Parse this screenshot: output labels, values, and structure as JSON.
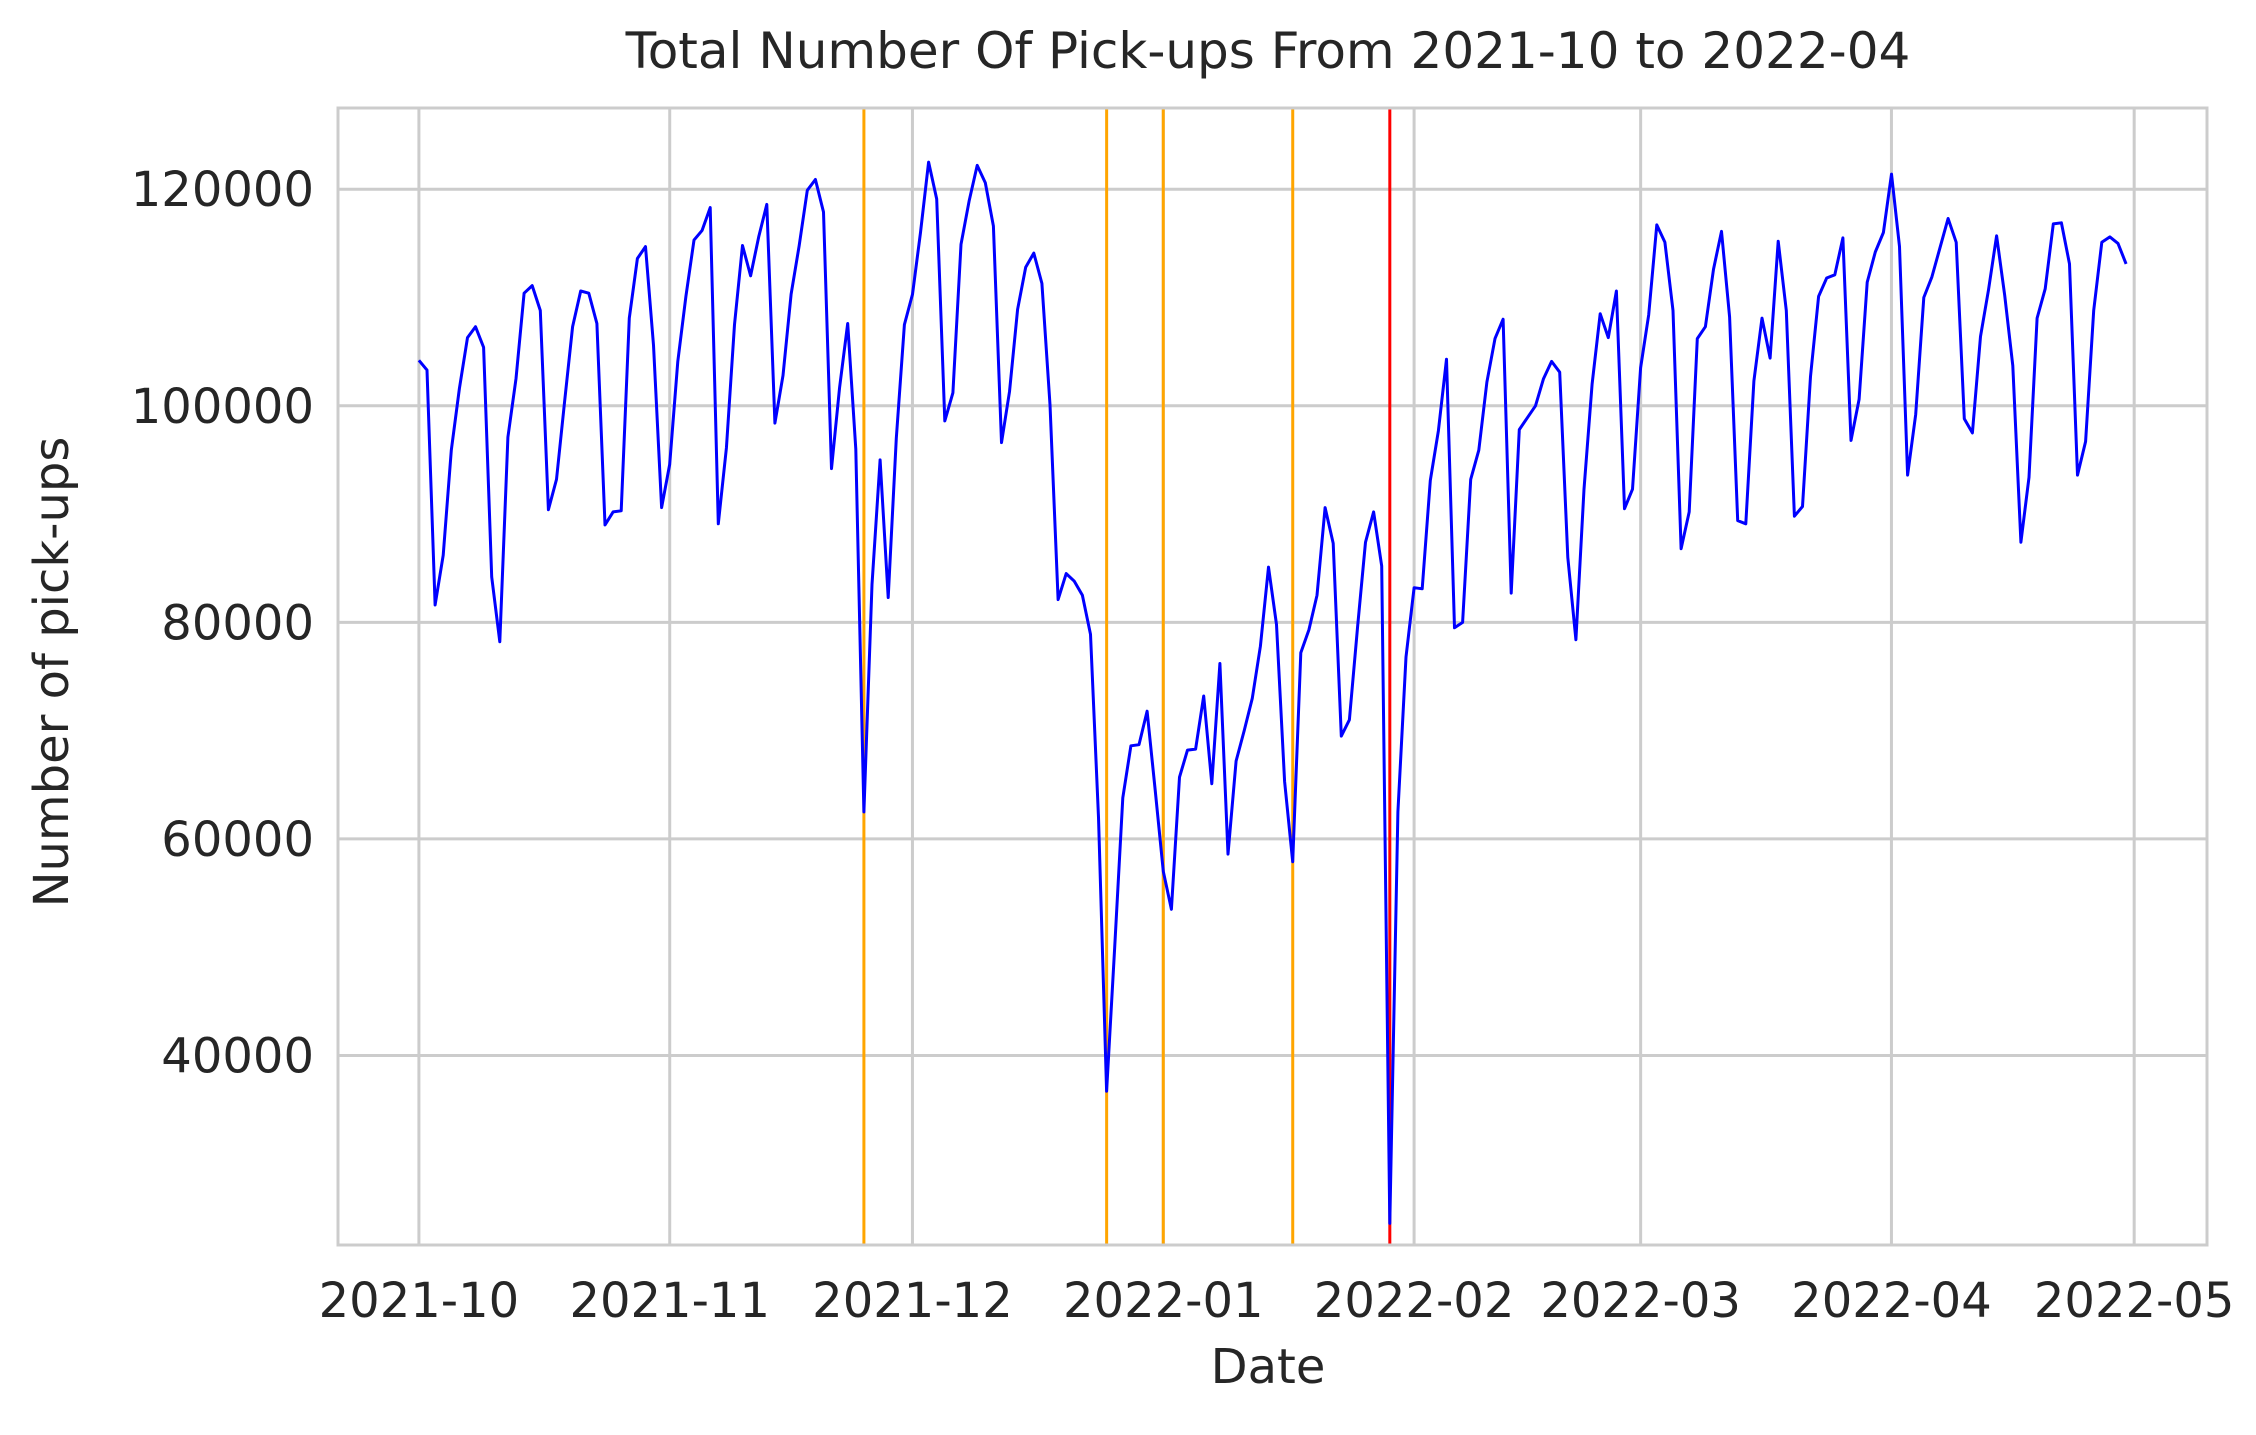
{
  "chart_data": {
    "type": "line",
    "title": "Total Number Of Pick-ups From 2021-10 to 2022-04",
    "xlabel": "Date",
    "ylabel": "Number of pick-ups",
    "xlim": [
      "2021-09-21",
      "2022-05-10"
    ],
    "ylim": [
      22500,
      127500
    ],
    "x_ticks": [
      "2021-10-01",
      "2021-11-01",
      "2021-12-01",
      "2022-01-01",
      "2022-02-01",
      "2022-03-01",
      "2022-04-01",
      "2022-05-01"
    ],
    "x_tick_labels": [
      "2021-10",
      "2021-11",
      "2021-12",
      "2022-01",
      "2022-02",
      "2022-03",
      "2022-04",
      "2022-05"
    ],
    "y_ticks": [
      40000,
      60000,
      80000,
      100000,
      120000
    ],
    "y_tick_labels": [
      "40000",
      "60000",
      "80000",
      "100000",
      "120000"
    ],
    "grid": true,
    "colors": {
      "line": "#0000ff",
      "event_line": "#ffa500",
      "highlight_line": "#ff0000",
      "grid": "#cccccc",
      "spine": "#cccccc",
      "text": "#262626"
    },
    "series": [
      {
        "start_date": "2021-10-01",
        "values": [
          104200,
          103300,
          81600,
          86200,
          95900,
          101600,
          106300,
          107300,
          105400,
          84200,
          78200,
          97100,
          102500,
          110400,
          111100,
          108800,
          90400,
          93200,
          100300,
          107300,
          110600,
          110400,
          107600,
          89000,
          90200,
          90300,
          108100,
          113600,
          114700,
          105600,
          90600,
          94600,
          104100,
          110100,
          115300,
          116200,
          118300,
          89100,
          96100,
          107500,
          114800,
          112000,
          115600,
          118600,
          98400,
          102800,
          110300,
          114800,
          119900,
          120900,
          117900,
          94200,
          101700,
          107600,
          96000,
          62500,
          83500,
          95000,
          82300,
          97000,
          107500,
          110300,
          116000,
          122500,
          119100,
          98600,
          101200,
          114900,
          118900,
          122200,
          120600,
          116600,
          96600,
          101300,
          108900,
          112800,
          114100,
          111300,
          100100,
          82100,
          84500,
          83800,
          82500,
          78900,
          62000,
          36700,
          50000,
          63800,
          68600,
          68700,
          71800,
          64500,
          57000,
          53500,
          65700,
          68200,
          68300,
          73200,
          65100,
          76200,
          58600,
          67200,
          70000,
          73000,
          77800,
          85100,
          79800,
          65300,
          57900,
          77200,
          79300,
          82500,
          90600,
          87300,
          69500,
          71000,
          79500,
          87400,
          90200,
          85200,
          24500,
          62500,
          76800,
          83200,
          83100,
          93100,
          97700,
          104300,
          79500,
          80000,
          93200,
          95900,
          102200,
          106200,
          108000,
          82700,
          97800,
          98900,
          100000,
          102500,
          104100,
          103100,
          86000,
          78400,
          92300,
          102000,
          108500,
          106300,
          110600,
          90500,
          92300,
          103500,
          108400,
          116700,
          115100,
          108800,
          86800,
          90200,
          106200,
          107300,
          112600,
          116100,
          108200,
          89400,
          89100,
          102300,
          108100,
          104400,
          115200,
          108800,
          89800,
          90700,
          102700,
          110100,
          111800,
          112100,
          115500,
          96800,
          100600,
          111400,
          114200,
          116000,
          121400,
          114700,
          93600,
          99200,
          110000,
          111900,
          114600,
          117300,
          115100,
          98800,
          97500,
          106400,
          110700,
          115700,
          110200,
          103700,
          87400,
          93400,
          108100,
          110800,
          116800,
          116900,
          113100,
          93600,
          96700,
          108800,
          115100,
          115600,
          115000,
          113100
        ]
      }
    ],
    "vertical_lines": [
      {
        "date": "2021-11-25",
        "color": "orange"
      },
      {
        "date": "2021-12-25",
        "color": "orange"
      },
      {
        "date": "2022-01-01",
        "color": "orange"
      },
      {
        "date": "2022-01-17",
        "color": "orange"
      },
      {
        "date": "2022-01-29",
        "color": "red"
      }
    ]
  }
}
